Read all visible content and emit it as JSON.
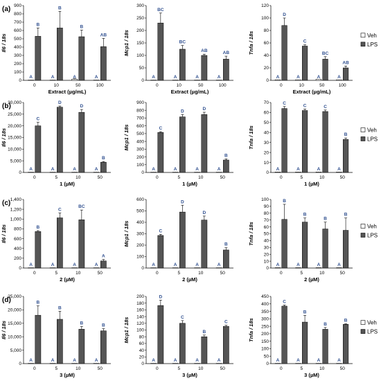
{
  "legend": {
    "veh": "Veh",
    "lps": "LPS"
  },
  "colors": {
    "veh": "#ffffff",
    "lps": "#555555",
    "letter": "#2f4f8f",
    "axis": "#000000"
  },
  "rows": [
    {
      "label": "(a)",
      "xlabel": "Extract (µg/mL)",
      "categories": [
        "0",
        "10",
        "50",
        "100"
      ]
    },
    {
      "label": "(b)",
      "xlabel": "1 (µM)",
      "categories": [
        "0",
        "5",
        "10",
        "50"
      ]
    },
    {
      "label": "(c)",
      "xlabel": "2 (µM)",
      "categories": [
        "0",
        "5",
        "10",
        "50"
      ]
    },
    {
      "label": "(d)",
      "xlabel": "3 (µM)",
      "categories": [
        "0",
        "5",
        "10",
        "50"
      ]
    }
  ],
  "chart_data": [
    {
      "type": "bar",
      "row": 0,
      "col": 0,
      "ylabel": "Il6 / 18s",
      "ylim": [
        0,
        900
      ],
      "ystep": 100,
      "categories": [
        "0",
        "10",
        "50",
        "100"
      ],
      "series": [
        {
          "name": "Veh",
          "values": [
            2,
            2,
            15,
            2
          ],
          "errors": [
            0,
            0,
            5,
            0
          ],
          "letters": [
            "A",
            "A",
            "A",
            "A"
          ]
        },
        {
          "name": "LPS",
          "values": [
            530,
            630,
            525,
            405
          ],
          "errors": [
            100,
            200,
            80,
            100
          ],
          "letters": [
            "B",
            "B",
            "B",
            "AB"
          ]
        }
      ]
    },
    {
      "type": "bar",
      "row": 0,
      "col": 1,
      "ylabel": "Mcp1 / 18s",
      "ylim": [
        0,
        300
      ],
      "ystep": 50,
      "categories": [
        "0",
        "10",
        "50",
        "100"
      ],
      "series": [
        {
          "name": "Veh",
          "values": [
            1,
            1,
            1,
            1
          ],
          "errors": [
            0,
            0,
            0,
            0
          ],
          "letters": [
            "A",
            "A",
            "A",
            "A"
          ]
        },
        {
          "name": "LPS",
          "values": [
            230,
            125,
            100,
            85
          ],
          "errors": [
            40,
            15,
            5,
            12
          ],
          "letters": [
            "BC",
            "BC",
            "AB",
            "AB"
          ]
        }
      ]
    },
    {
      "type": "bar",
      "row": 0,
      "col": 2,
      "ylabel": "Tnfa / 18s",
      "ylim": [
        0,
        120
      ],
      "ystep": 20,
      "categories": [
        "0",
        "10",
        "50",
        "100"
      ],
      "series": [
        {
          "name": "Veh",
          "values": [
            1,
            1,
            2,
            1
          ],
          "errors": [
            0,
            0,
            0,
            0
          ],
          "letters": [
            "A",
            "A",
            "A",
            "A"
          ]
        },
        {
          "name": "LPS",
          "values": [
            88,
            55,
            34,
            20
          ],
          "errors": [
            12,
            2,
            4,
            3
          ],
          "letters": [
            "D",
            "C",
            "BC",
            "AB"
          ]
        }
      ]
    },
    {
      "type": "bar",
      "row": 1,
      "col": 0,
      "ylabel": "Il6 / 18s",
      "ylim": [
        0,
        30000
      ],
      "ystep": 5000,
      "categories": [
        "0",
        "5",
        "10",
        "50"
      ],
      "series": [
        {
          "name": "Veh",
          "values": [
            20,
            20,
            20,
            20
          ],
          "errors": [
            0,
            0,
            0,
            0
          ],
          "letters": [
            "A",
            "A",
            "A",
            "A"
          ]
        },
        {
          "name": "LPS",
          "values": [
            20000,
            28000,
            25800,
            4400
          ],
          "errors": [
            1500,
            500,
            1200,
            300
          ],
          "letters": [
            "C",
            "D",
            "D",
            "B"
          ]
        }
      ]
    },
    {
      "type": "bar",
      "row": 1,
      "col": 1,
      "ylabel": "Mcp1 / 18s",
      "ylim": [
        0,
        900
      ],
      "ystep": 100,
      "categories": [
        "0",
        "5",
        "10",
        "50"
      ],
      "series": [
        {
          "name": "Veh",
          "values": [
            2,
            2,
            2,
            2
          ],
          "errors": [
            0,
            0,
            0,
            0
          ],
          "letters": [
            "A",
            "A",
            "A",
            "A"
          ]
        },
        {
          "name": "LPS",
          "values": [
            515,
            715,
            745,
            160
          ],
          "errors": [
            10,
            30,
            30,
            15
          ],
          "letters": [
            "C",
            "D",
            "D",
            "B"
          ]
        }
      ]
    },
    {
      "type": "bar",
      "row": 1,
      "col": 2,
      "ylabel": "Tnfa / 18s",
      "ylim": [
        0,
        70
      ],
      "ystep": 10,
      "categories": [
        "0",
        "5",
        "10",
        "50"
      ],
      "series": [
        {
          "name": "Veh",
          "values": [
            0.5,
            0.5,
            0.5,
            0.5
          ],
          "errors": [
            0,
            0,
            0,
            0
          ],
          "letters": [
            "A",
            "A",
            "A",
            "A"
          ]
        },
        {
          "name": "LPS",
          "values": [
            64,
            62,
            61,
            33
          ],
          "errors": [
            2,
            1.5,
            1.5,
            1.5
          ],
          "letters": [
            "C",
            "C",
            "C",
            "B"
          ]
        }
      ]
    },
    {
      "type": "bar",
      "row": 2,
      "col": 0,
      "ylabel": "Il6 / 18s",
      "ylim": [
        0,
        1400
      ],
      "ystep": 200,
      "categories": [
        "0",
        "5",
        "10",
        "50"
      ],
      "series": [
        {
          "name": "Veh",
          "values": [
            5,
            5,
            5,
            5
          ],
          "errors": [
            0,
            0,
            0,
            0
          ],
          "letters": [
            "A",
            "A",
            "A",
            "A"
          ]
        },
        {
          "name": "LPS",
          "values": [
            745,
            1025,
            985,
            145
          ],
          "errors": [
            20,
            100,
            200,
            30
          ],
          "letters": [
            "B",
            "C",
            "BC",
            "A"
          ]
        }
      ]
    },
    {
      "type": "bar",
      "row": 2,
      "col": 1,
      "ylabel": "Mcp1 / 18s",
      "ylim": [
        0,
        600
      ],
      "ystep": 100,
      "categories": [
        "0",
        "5",
        "10",
        "50"
      ],
      "series": [
        {
          "name": "Veh",
          "values": [
            2,
            2,
            2,
            2
          ],
          "errors": [
            0,
            0,
            0,
            0
          ],
          "letters": [
            "A",
            "A",
            "A",
            "A"
          ]
        },
        {
          "name": "LPS",
          "values": [
            285,
            490,
            420,
            158
          ],
          "errors": [
            10,
            60,
            35,
            20
          ],
          "letters": [
            "C",
            "D",
            "D",
            "B"
          ]
        }
      ]
    },
    {
      "type": "bar",
      "row": 2,
      "col": 2,
      "ylabel": "Tnfa / 18s",
      "ylim": [
        0,
        100
      ],
      "ystep": 10,
      "categories": [
        "0",
        "5",
        "10",
        "50"
      ],
      "series": [
        {
          "name": "Veh",
          "values": [
            0.5,
            0.5,
            0.5,
            0.5
          ],
          "errors": [
            0,
            0,
            0,
            0
          ],
          "letters": [
            "A",
            "A",
            "A",
            "A"
          ]
        },
        {
          "name": "LPS",
          "values": [
            71,
            67,
            57,
            55
          ],
          "errors": [
            22,
            6,
            10,
            18
          ],
          "letters": [
            "B",
            "B",
            "B",
            "B"
          ]
        }
      ]
    },
    {
      "type": "bar",
      "row": 3,
      "col": 0,
      "ylabel": "Il6 / 18s",
      "ylim": [
        0,
        25000
      ],
      "ystep": 5000,
      "categories": [
        "0",
        "5",
        "10",
        "50"
      ],
      "series": [
        {
          "name": "Veh",
          "values": [
            20,
            20,
            20,
            20
          ],
          "errors": [
            0,
            0,
            0,
            0
          ],
          "letters": [
            "A",
            "A",
            "A",
            "A"
          ]
        },
        {
          "name": "LPS",
          "values": [
            18000,
            16500,
            12800,
            12200
          ],
          "errors": [
            3500,
            3000,
            1000,
            800
          ],
          "letters": [
            "B",
            "B",
            "B",
            "B"
          ]
        }
      ]
    },
    {
      "type": "bar",
      "row": 3,
      "col": 1,
      "ylabel": "Mcp1 / 18s",
      "ylim": [
        0,
        200
      ],
      "ystep": 20,
      "categories": [
        "0",
        "5",
        "10",
        "50"
      ],
      "series": [
        {
          "name": "Veh",
          "values": [
            0.5,
            0.5,
            0.5,
            0.5
          ],
          "errors": [
            0,
            0,
            0,
            0
          ],
          "letters": [
            "A",
            "A",
            "A",
            "A"
          ]
        },
        {
          "name": "LPS",
          "values": [
            173,
            120,
            80,
            111
          ],
          "errors": [
            16,
            8,
            5,
            3
          ],
          "letters": [
            "D",
            "C",
            "B",
            "C"
          ]
        }
      ]
    },
    {
      "type": "bar",
      "row": 3,
      "col": 2,
      "ylabel": "Tnfa / 18s",
      "ylim": [
        0,
        450
      ],
      "ystep": 50,
      "categories": [
        "0",
        "5",
        "10",
        "50"
      ],
      "series": [
        {
          "name": "Veh",
          "values": [
            1,
            1,
            1,
            1
          ],
          "errors": [
            0,
            0,
            0,
            0
          ],
          "letters": [
            "A",
            "A",
            "A",
            "A"
          ]
        },
        {
          "name": "LPS",
          "values": [
            385,
            278,
            230,
            263
          ],
          "errors": [
            8,
            45,
            12,
            4
          ],
          "letters": [
            "C",
            "B",
            "B",
            "B"
          ]
        }
      ]
    }
  ]
}
